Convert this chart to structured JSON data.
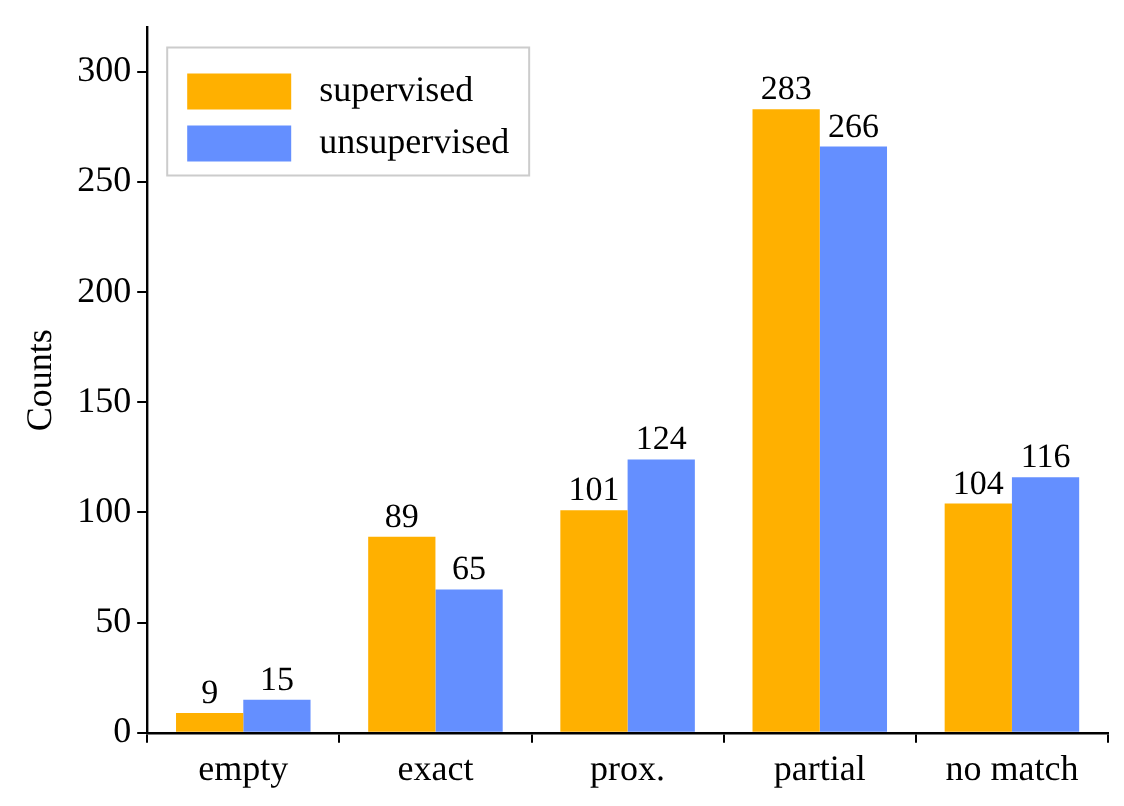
{
  "chart_data": {
    "type": "bar",
    "ylabel": "Counts",
    "categories": [
      "empty",
      "exact",
      "prox.",
      "partial",
      "no match"
    ],
    "series": [
      {
        "name": "supervised",
        "color": "#ffb000",
        "values": [
          9,
          89,
          101,
          283,
          104
        ]
      },
      {
        "name": "unsupervised",
        "color": "#648fff",
        "values": [
          15,
          65,
          124,
          266,
          116
        ]
      }
    ],
    "ylim": [
      0,
      320
    ],
    "yticks": [
      0,
      50,
      100,
      150,
      200,
      250,
      300
    ],
    "data_labels": true,
    "legend": "top left",
    "grid": false
  }
}
